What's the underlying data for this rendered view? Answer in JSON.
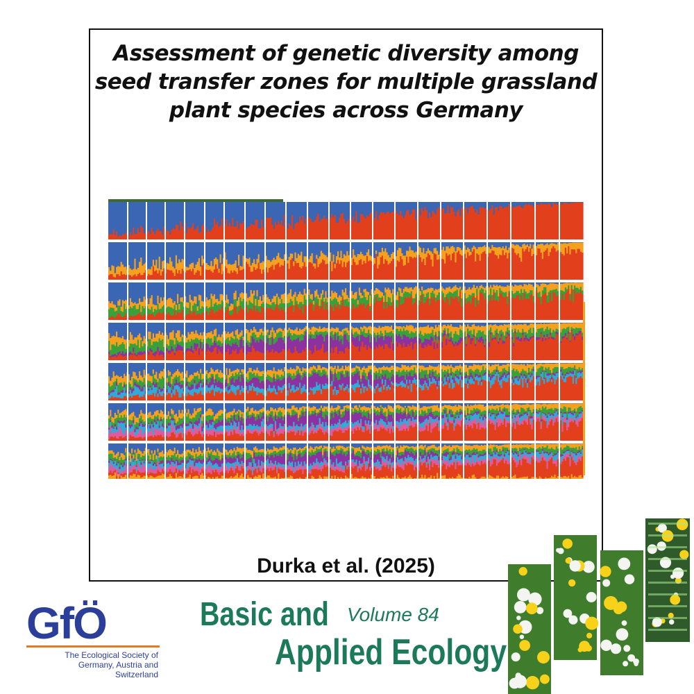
{
  "title_lines": [
    "Assessment of genetic diversity among",
    "seed transfer zones for multiple grassland",
    "plant species across Germany"
  ],
  "citation": "Durka et al. (2025)",
  "society": {
    "name": "GfÖ",
    "sub_lines": [
      "The Ecological Society of",
      "Germany, Austria and",
      "Switzerland"
    ]
  },
  "journal": {
    "line1": "Basic and",
    "line2": "Applied Ecology",
    "volume": "Volume 84"
  },
  "colors": {
    "blue": "#3a66b3",
    "red": "#e2401d",
    "orange": "#f5a01f",
    "green": "#3aa13a",
    "purple": "#8b32a0",
    "cyan": "#33a9d6",
    "pink": "#e05aa0",
    "frame_green": "#3f6a2f",
    "accent_orange": "#e07b2a",
    "journal_green": "#1c7a5a",
    "gfo_blue": "#2b3f9a"
  },
  "figure": {
    "rows": [
      {
        "k": 2,
        "colors": [
          "blue",
          "red"
        ]
      },
      {
        "k": 3,
        "colors": [
          "blue",
          "orange",
          "red"
        ]
      },
      {
        "k": 4,
        "colors": [
          "blue",
          "orange",
          "green",
          "red"
        ]
      },
      {
        "k": 5,
        "colors": [
          "blue",
          "orange",
          "green",
          "purple",
          "red"
        ]
      },
      {
        "k": 6,
        "colors": [
          "blue",
          "orange",
          "green",
          "purple",
          "cyan",
          "red"
        ]
      },
      {
        "k": 7,
        "colors": [
          "blue",
          "orange",
          "green",
          "purple",
          "cyan",
          "pink",
          "red"
        ]
      },
      {
        "k": 8,
        "colors": [
          "blue",
          "orange",
          "green",
          "purple",
          "cyan",
          "pink",
          "red",
          "orange"
        ]
      }
    ],
    "groups": 22
  }
}
